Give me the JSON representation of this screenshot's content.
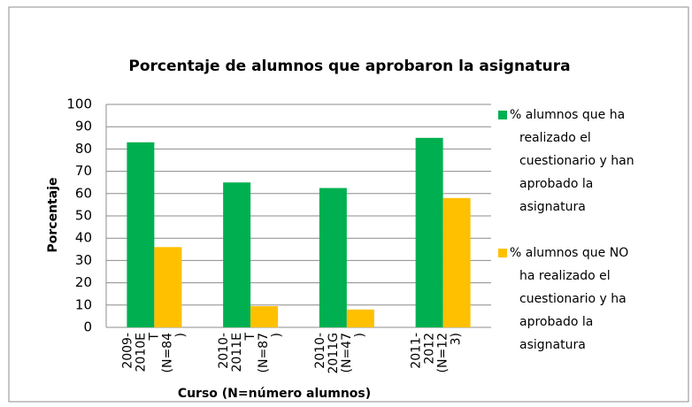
{
  "chart_data": {
    "type": "bar",
    "title": "Porcentaje de alumnos que aprobaron la asignatura",
    "y_label": "Porcentaje",
    "x_label": "Curso (N=número alumnos)",
    "categories": [
      "2009-2010ET (N=84)",
      "2010-2011ET (N=87)",
      "2010-2011G (N=47)",
      "2011-2012 (N=123)"
    ],
    "series": [
      {
        "name": "% alumnos que ha realizado el cuestionario y han aprobado la asignatura",
        "color": "#00b050",
        "values": [
          83,
          65,
          62.5,
          85
        ]
      },
      {
        "name": "% alumnos que NO ha realizado el cuestionario y ha aprobado la asignatura",
        "color": "#ffc000",
        "values": [
          36,
          9.5,
          8,
          58
        ]
      }
    ],
    "ylim": [
      0,
      100
    ],
    "yticks": [
      0,
      10,
      20,
      30,
      40,
      50,
      60,
      70,
      80,
      90,
      100
    ],
    "grid": true,
    "legend": "right"
  }
}
